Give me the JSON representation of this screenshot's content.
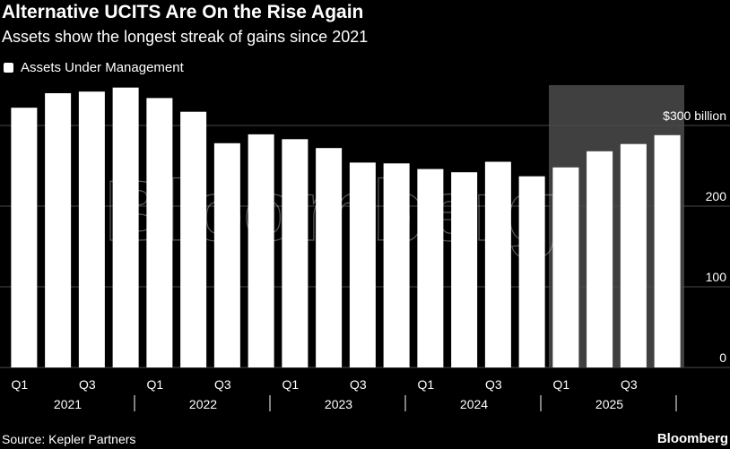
{
  "header": {
    "title": "Alternative UCITS Are On the Rise Again",
    "subtitle": "Assets show the longest streak of gains since 2021"
  },
  "legend": {
    "label": "Assets Under Management"
  },
  "footer": {
    "source": "Source: Kepler Partners",
    "brand": "Bloomberg"
  },
  "watermark": "Bloomberg",
  "colors": {
    "background": "#000000",
    "bar": "#ffffff",
    "grid": "#4a4a4a",
    "highlight": "#404040"
  },
  "chart_data": {
    "type": "bar",
    "title": "Alternative UCITS Are On the Rise Again",
    "subtitle": "Assets show the longest streak of gains since 2021",
    "xlabel": "",
    "ylabel": "",
    "categories": [
      "2021 Q1",
      "2021 Q2",
      "2021 Q3",
      "2021 Q4",
      "2022 Q1",
      "2022 Q2",
      "2022 Q3",
      "2022 Q4",
      "2023 Q1",
      "2023 Q2",
      "2023 Q3",
      "2023 Q4",
      "2024 Q1",
      "2024 Q2",
      "2024 Q3",
      "2024 Q4",
      "2025 Q1",
      "2025 Q2",
      "2025 Q3",
      "2025 Q4"
    ],
    "series": [
      {
        "name": "Assets Under Management",
        "values": [
          322,
          340,
          342,
          347,
          334,
          317,
          278,
          289,
          283,
          272,
          254,
          253,
          246,
          242,
          255,
          237,
          248,
          268,
          277,
          288
        ]
      }
    ],
    "ylim": [
      0,
      350
    ],
    "yticks": [
      {
        "value": 0,
        "label": "0"
      },
      {
        "value": 100,
        "label": "100"
      },
      {
        "value": 200,
        "label": "200"
      },
      {
        "value": 300,
        "label": "$300 billion"
      }
    ],
    "quarter_labels": [
      {
        "index": 0,
        "label": "Q1"
      },
      {
        "index": 2,
        "label": "Q3"
      },
      {
        "index": 4,
        "label": "Q1"
      },
      {
        "index": 6,
        "label": "Q3"
      },
      {
        "index": 8,
        "label": "Q1"
      },
      {
        "index": 10,
        "label": "Q3"
      },
      {
        "index": 12,
        "label": "Q1"
      },
      {
        "index": 14,
        "label": "Q3"
      },
      {
        "index": 16,
        "label": "Q1"
      },
      {
        "index": 18,
        "label": "Q3"
      }
    ],
    "years": [
      "2021",
      "2022",
      "2023",
      "2024",
      "2025"
    ],
    "highlight": {
      "from_index": 16,
      "to_index": 19,
      "note": "shaded region"
    },
    "grid": true,
    "legend_position": "top-left"
  }
}
